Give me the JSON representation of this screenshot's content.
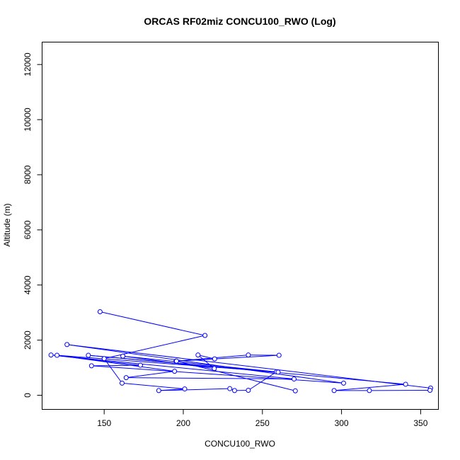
{
  "chart_data": {
    "type": "line",
    "title": "ORCAS RF02miz CONCU100_RWO (Log)",
    "xlabel": "CONCU100_RWO",
    "ylabel": "Altitude (m)",
    "xlim": [
      111,
      361
    ],
    "ylim": [
      -500,
      12800
    ],
    "x_ticks": [
      150,
      200,
      250,
      300,
      350
    ],
    "y_ticks": [
      0,
      2000,
      4000,
      6000,
      8000,
      10000,
      12000
    ],
    "grid": false,
    "legend": "none",
    "series_color": "#0000ff",
    "points": [
      {
        "x": 147.4,
        "y": 3030
      },
      {
        "x": 213.7,
        "y": 2170
      },
      {
        "x": 150.0,
        "y": 1330
      },
      {
        "x": 161.3,
        "y": 440
      },
      {
        "x": 200.9,
        "y": 230
      },
      {
        "x": 184.5,
        "y": 170
      },
      {
        "x": 229.4,
        "y": 240
      },
      {
        "x": 232.4,
        "y": 170
      },
      {
        "x": 241.1,
        "y": 180
      },
      {
        "x": 258.9,
        "y": 850
      },
      {
        "x": 120.2,
        "y": 1450
      },
      {
        "x": 194.5,
        "y": 870
      },
      {
        "x": 163.9,
        "y": 640
      },
      {
        "x": 270.0,
        "y": 590
      },
      {
        "x": 116.4,
        "y": 1460
      },
      {
        "x": 172.9,
        "y": 1090
      },
      {
        "x": 142.0,
        "y": 1070
      },
      {
        "x": 301.3,
        "y": 440
      },
      {
        "x": 126.5,
        "y": 1840
      },
      {
        "x": 356.3,
        "y": 260
      },
      {
        "x": 355.9,
        "y": 180
      },
      {
        "x": 317.6,
        "y": 170
      },
      {
        "x": 295.3,
        "y": 170
      },
      {
        "x": 340.5,
        "y": 400
      },
      {
        "x": 140.0,
        "y": 1450
      },
      {
        "x": 259.9,
        "y": 840
      },
      {
        "x": 161.8,
        "y": 1420
      },
      {
        "x": 219.6,
        "y": 970
      },
      {
        "x": 209.3,
        "y": 1460
      },
      {
        "x": 219.8,
        "y": 1320
      },
      {
        "x": 195.4,
        "y": 1240
      },
      {
        "x": 241.1,
        "y": 1460
      },
      {
        "x": 260.5,
        "y": 1450
      },
      {
        "x": 195.7,
        "y": 1240
      },
      {
        "x": 270.8,
        "y": 160
      }
    ]
  }
}
